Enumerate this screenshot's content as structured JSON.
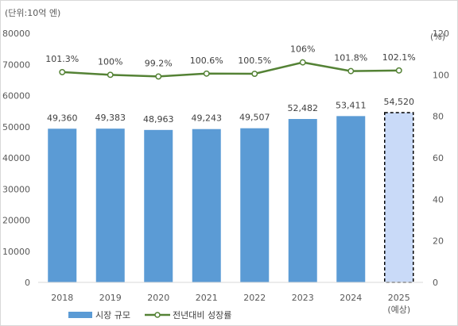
{
  "chart_data": {
    "type": "bar",
    "categories": [
      "2018",
      "2019",
      "2020",
      "2021",
      "2022",
      "2023",
      "2024",
      "2025"
    ],
    "category_sublabels": [
      "",
      "",
      "",
      "",
      "",
      "",
      "",
      "(예상)"
    ],
    "left_unit": "(단위:10억 엔)",
    "right_unit": "(%)",
    "ylim_left": [
      0,
      80000
    ],
    "yticks_left": [
      "0",
      "10000",
      "20000",
      "30000",
      "40000",
      "50000",
      "60000",
      "70000",
      "80000"
    ],
    "ylim_right": [
      0,
      120
    ],
    "yticks_right": [
      "0",
      "20",
      "40",
      "60",
      "80",
      "100",
      "120"
    ],
    "grid": false,
    "legend_position": "bottom",
    "series": [
      {
        "name": "시장 규모",
        "kind": "bar",
        "axis": "left",
        "values": [
          49360,
          49383,
          48963,
          49243,
          49507,
          52482,
          53411,
          54520
        ],
        "labels": [
          "49,360",
          "49,383",
          "48,963",
          "49,243",
          "49,507",
          "52,482",
          "53,411",
          "54,520"
        ],
        "color": "#5b9bd5",
        "forecast_color": "#c9daf8",
        "forecast_from_index": 7
      },
      {
        "name": "전년대비 성장률",
        "kind": "line",
        "axis": "right",
        "values": [
          101.3,
          100,
          99.2,
          100.6,
          100.5,
          106,
          101.8,
          102.1
        ],
        "labels": [
          "101.3%",
          "100%",
          "99.2%",
          "100.6%",
          "100.5%",
          "106%",
          "101.8%",
          "102.1%"
        ],
        "color": "#548235"
      }
    ]
  }
}
